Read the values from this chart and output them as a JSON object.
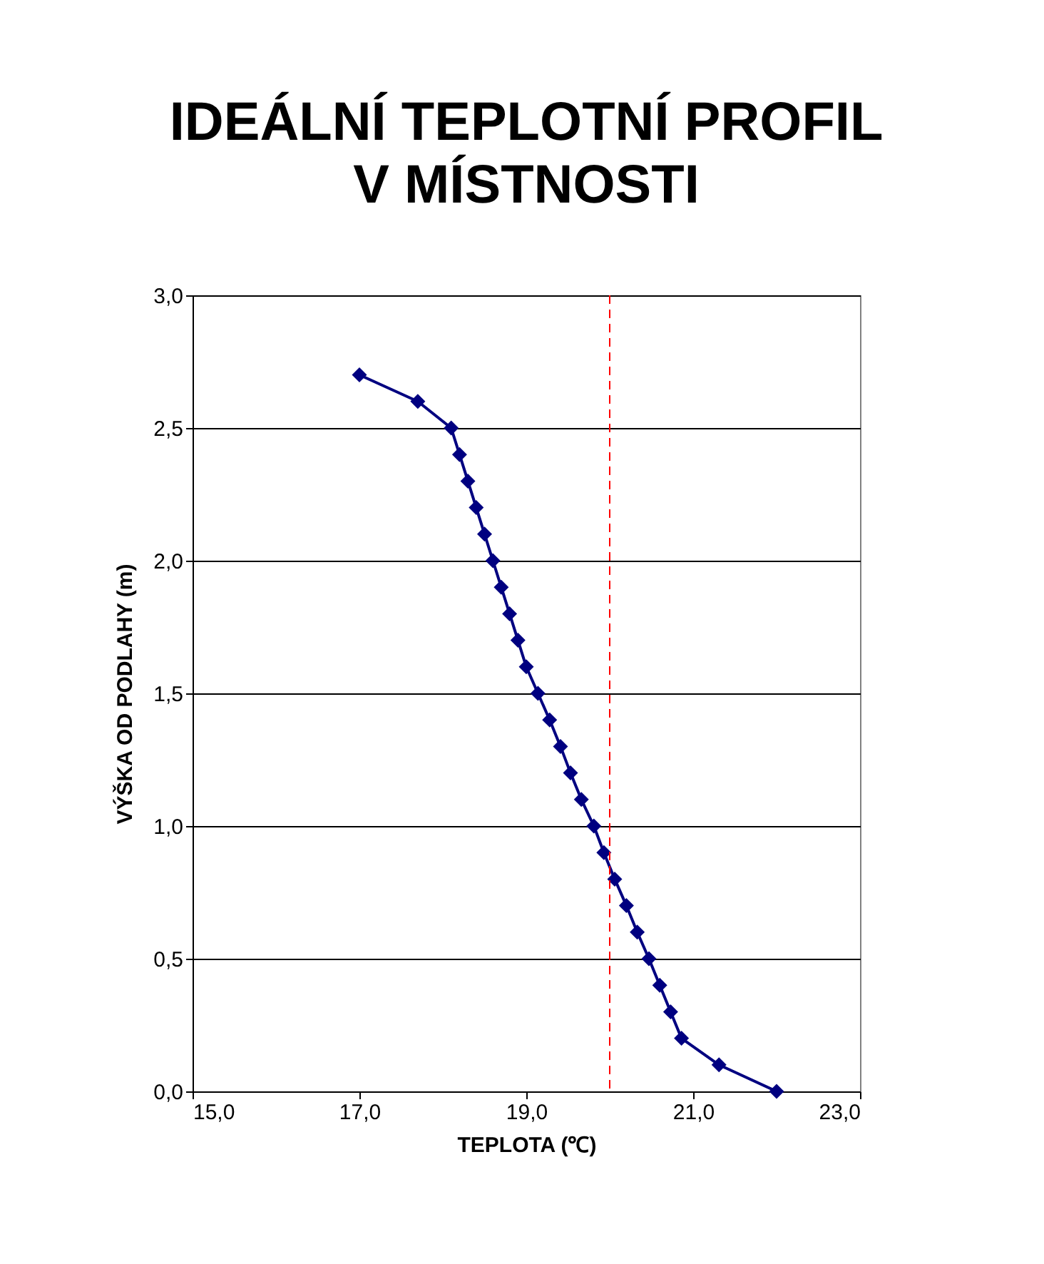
{
  "chart_data": {
    "type": "line",
    "title": [
      "IDEÁLNÍ TEPLOTNÍ PROFIL",
      "V MÍSTNOSTI"
    ],
    "xlabel": "TEPLOTA (℃)",
    "ylabel": "VÝŠKA OD PODLAHY (m)",
    "x": [
      17.0,
      17.7,
      18.1,
      18.2,
      18.3,
      18.4,
      18.5,
      18.6,
      18.7,
      18.8,
      18.9,
      19.0,
      19.14,
      19.28,
      19.41,
      19.53,
      19.66,
      19.81,
      19.93,
      20.06,
      20.2,
      20.33,
      20.47,
      20.6,
      20.73,
      20.86,
      21.31,
      22.0
    ],
    "series": [
      {
        "color": "#000080",
        "values": [
          2.7,
          2.6,
          2.5,
          2.4,
          2.3,
          2.2,
          2.1,
          2.0,
          1.9,
          1.8,
          1.7,
          1.6,
          1.5,
          1.4,
          1.3,
          1.2,
          1.1,
          1.0,
          0.9,
          0.8,
          0.7,
          0.6,
          0.5,
          0.4,
          0.3,
          0.2,
          0.1,
          0.0
        ]
      }
    ],
    "xlim": [
      15,
      23
    ],
    "xticks": [
      {
        "value": 15,
        "label": "15,0"
      },
      {
        "value": 17,
        "label": "17,0"
      },
      {
        "value": 19,
        "label": "19,0"
      },
      {
        "value": 21,
        "label": "21,0"
      },
      {
        "value": 23,
        "label": "23,0"
      }
    ],
    "ylim": [
      0,
      3
    ],
    "yticks": [
      {
        "value": 0,
        "label": "0,0"
      },
      {
        "value": 0.5,
        "label": "0,5"
      },
      {
        "value": 1,
        "label": "1,0"
      },
      {
        "value": 1.5,
        "label": "1,5"
      },
      {
        "value": 2,
        "label": "2,0"
      },
      {
        "value": 2.5,
        "label": "2,5"
      },
      {
        "value": 3,
        "label": "3,0"
      }
    ],
    "ref_lines": [
      {
        "axis": "x",
        "value": 20,
        "color": "#ff0000",
        "line_style": "dashed"
      }
    ],
    "grid": "y",
    "marker": "diamond",
    "line_style": "solid"
  }
}
